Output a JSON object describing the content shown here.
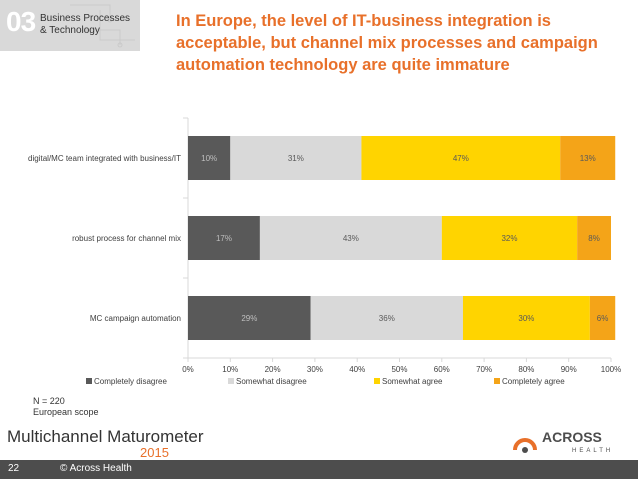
{
  "header": {
    "section_number": "03",
    "section_label_line1": "Business Processes",
    "section_label_line2": "& Technology",
    "title_line1": "In Europe, the level of IT-business integration is",
    "title_line2": "acceptable, but channel mix processes and campaign",
    "title_line3": "automation technology are quite immature"
  },
  "chart_data": {
    "type": "bar",
    "orientation": "horizontal",
    "stacked": true,
    "categories": [
      "digital/MC team integrated with business/IT",
      "robust process for channel mix",
      "MC campaign automation"
    ],
    "series": [
      {
        "name": "Completely disagree",
        "values": [
          10,
          17,
          29
        ],
        "labels": [
          "10%",
          "17%",
          "29%"
        ],
        "color": "#595959"
      },
      {
        "name": "Somewhat disagree",
        "values": [
          31,
          43,
          36
        ],
        "labels": [
          "31%",
          "43%",
          "36%"
        ],
        "color": "#d9d9d9"
      },
      {
        "name": "Somewhat agree",
        "values": [
          47,
          32,
          30
        ],
        "labels": [
          "47%",
          "32%",
          "30%"
        ],
        "color": "#ffd400"
      },
      {
        "name": "Completely agree",
        "values": [
          13,
          8,
          6
        ],
        "labels": [
          "13%",
          "8%",
          "6%"
        ],
        "color": "#f4a418"
      }
    ],
    "xlim": [
      0,
      100
    ],
    "xticks": [
      "0%",
      "10%",
      "20%",
      "30%",
      "40%",
      "50%",
      "60%",
      "70%",
      "80%",
      "90%",
      "100%"
    ],
    "legend_position": "bottom",
    "grid": false
  },
  "notes": {
    "sample": "N = 220",
    "scope": "European scope"
  },
  "branding": {
    "name": "Multichannel Maturometer",
    "year": "2015",
    "logo_text": "ACROSS",
    "logo_subtext": "HEALTH"
  },
  "footer": {
    "page_number": "22",
    "copyright": "© Across Health"
  },
  "colors": {
    "accent": "#e8702a",
    "footer_bg": "#4d4d4d"
  }
}
